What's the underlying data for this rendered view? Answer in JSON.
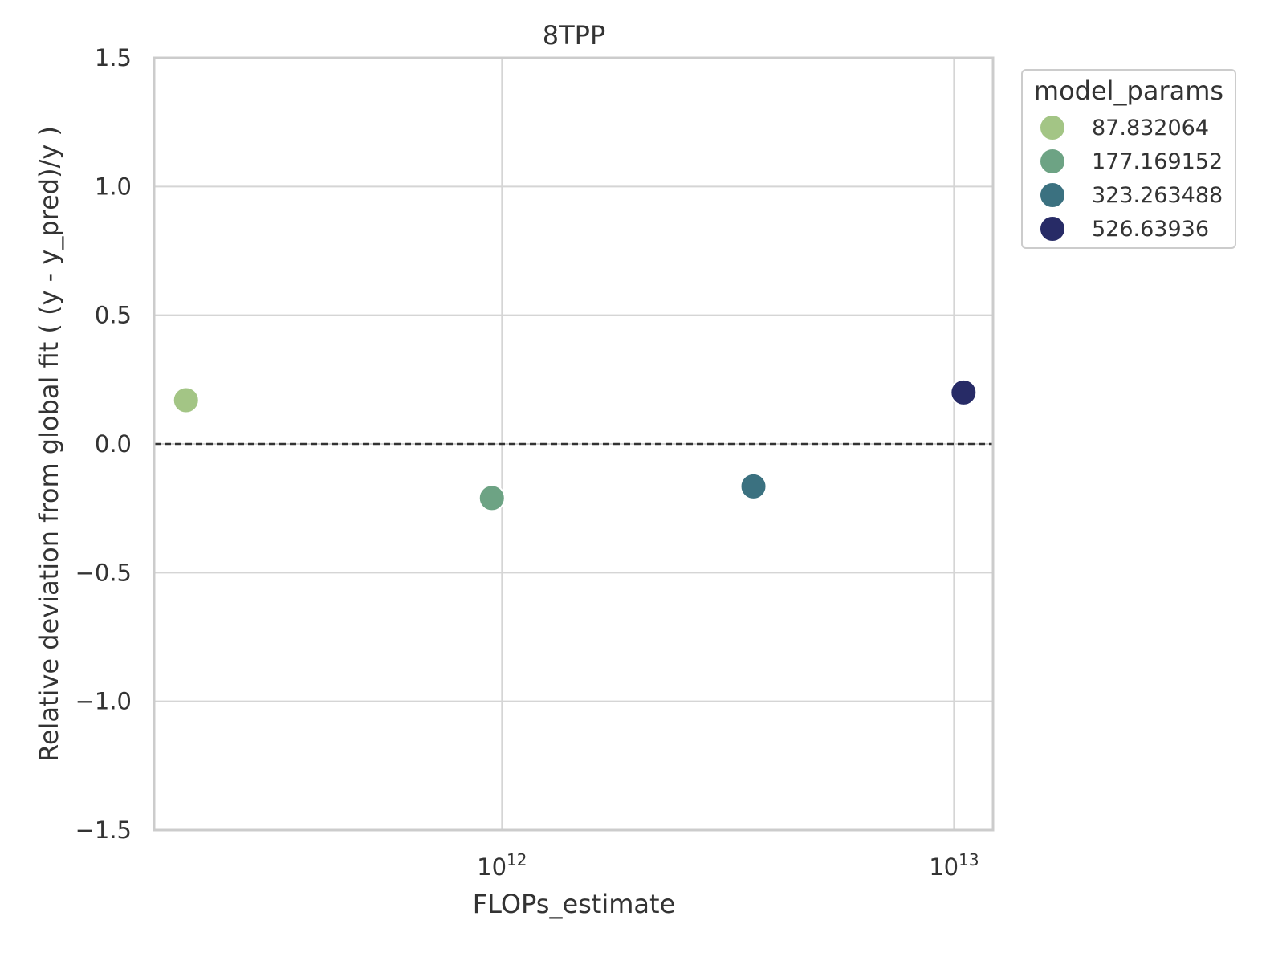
{
  "chart_data": {
    "type": "scatter",
    "title": "8TPP",
    "xlabel": "FLOPs_estimate",
    "ylabel": "Relative deviation from global fit ( (y - y_pred)/y )",
    "x_scale": "log",
    "xlim": [
      170000000000.0,
      12200000000000.0
    ],
    "ylim": [
      -1.5,
      1.5
    ],
    "x_ticks": [
      {
        "value": 1000000000000.0,
        "base": "10",
        "exp": "12"
      },
      {
        "value": 10000000000000.0,
        "base": "10",
        "exp": "13"
      }
    ],
    "y_ticks": [
      {
        "value": 1.5,
        "label": "1.5"
      },
      {
        "value": 1.0,
        "label": "1.0"
      },
      {
        "value": 0.5,
        "label": "0.5"
      },
      {
        "value": 0.0,
        "label": "0.0"
      },
      {
        "value": -0.5,
        "label": "−0.5"
      },
      {
        "value": -1.0,
        "label": "−1.0"
      },
      {
        "value": -1.5,
        "label": "−1.5"
      }
    ],
    "grid": true,
    "reference_line": {
      "y": 0.0,
      "style": "dashed",
      "color": "#333333"
    },
    "legend": {
      "title": "model_params",
      "placement": "outside-top-right",
      "entries": [
        {
          "label": "87.832064",
          "color": "#a3c585"
        },
        {
          "label": "177.169152",
          "color": "#6da384"
        },
        {
          "label": "323.263488",
          "color": "#3b7180"
        },
        {
          "label": "526.63936",
          "color": "#272b66"
        }
      ]
    },
    "points": [
      {
        "model_params": "87.832064",
        "x": 200000000000.0,
        "y": 0.17,
        "color": "#a3c585"
      },
      {
        "model_params": "177.169152",
        "x": 950000000000.0,
        "y": -0.21,
        "color": "#6da384"
      },
      {
        "model_params": "323.263488",
        "x": 3600000000000.0,
        "y": -0.165,
        "color": "#3b7180"
      },
      {
        "model_params": "526.63936",
        "x": 10500000000000.0,
        "y": 0.2,
        "color": "#272b66"
      }
    ]
  }
}
